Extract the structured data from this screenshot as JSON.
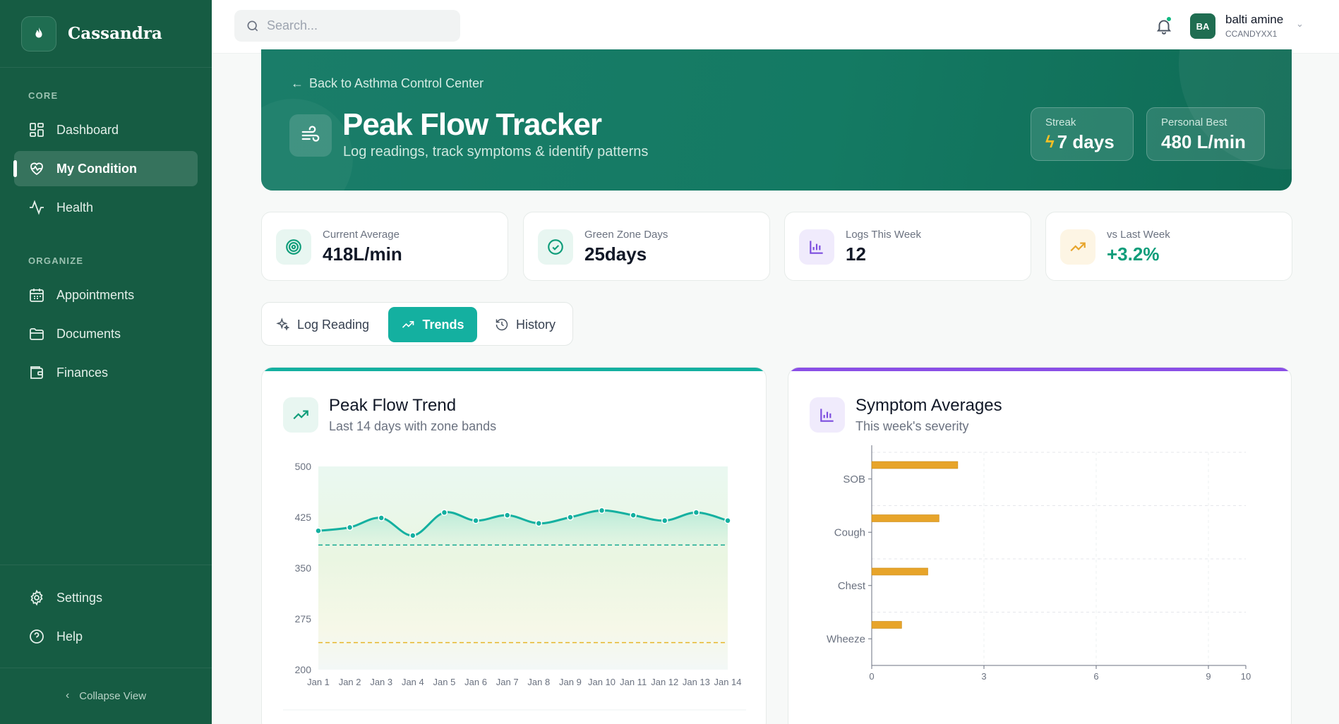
{
  "app": {
    "name": "Cassandra"
  },
  "sidebar": {
    "sections": {
      "core": "CORE",
      "organize": "ORGANIZE"
    },
    "items": [
      {
        "label": "Dashboard",
        "icon": "dashboard-icon"
      },
      {
        "label": "My Condition",
        "icon": "heart-pulse-icon"
      },
      {
        "label": "Health",
        "icon": "activity-icon"
      },
      {
        "label": "Appointments",
        "icon": "calendar-icon"
      },
      {
        "label": "Documents",
        "icon": "folder-icon"
      },
      {
        "label": "Finances",
        "icon": "wallet-icon"
      },
      {
        "label": "Settings",
        "icon": "gear-icon"
      },
      {
        "label": "Help",
        "icon": "help-icon"
      }
    ],
    "collapse_label": "Collapse View"
  },
  "topbar": {
    "search_placeholder": "Search...",
    "user": {
      "initials": "BA",
      "name": "balti amine",
      "id": "CCANDYXX1"
    }
  },
  "hero": {
    "back_label": "Back to Asthma Control Center",
    "title": "Peak Flow Tracker",
    "subtitle": "Log readings, track symptoms & identify patterns",
    "streak": {
      "label": "Streak",
      "value": "7 days"
    },
    "personal_best": {
      "label": "Personal Best",
      "value": "480 L/min"
    }
  },
  "kpis": [
    {
      "label": "Current Average",
      "value": "418L/min",
      "icon": "target-icon",
      "color": "#0f9d7a"
    },
    {
      "label": "Green Zone Days",
      "value": "25days",
      "icon": "check-circle-icon",
      "color": "#0f9d7a"
    },
    {
      "label": "Logs This Week",
      "value": "12",
      "icon": "bar-chart-icon",
      "color": "#7c4dde"
    },
    {
      "label": "vs Last Week",
      "value": "+3.2%",
      "icon": "trending-up-icon",
      "color": "#e7a42a"
    }
  ],
  "tabs": [
    {
      "label": "Log Reading"
    },
    {
      "label": "Trends"
    },
    {
      "label": "History"
    }
  ],
  "colors": {
    "accent": "#14b0a0",
    "sidebar": "#165c43",
    "purple": "#8a4fe6",
    "bar": "#e7a42a"
  },
  "trend_card": {
    "title": "Peak Flow Trend",
    "subtitle": "Last 14 days with zone bands"
  },
  "symptom_card": {
    "title": "Symptom Averages",
    "subtitle": "This week's severity"
  },
  "chart_data": [
    {
      "type": "line",
      "title": "Peak Flow Trend",
      "categories": [
        "Jan 1",
        "Jan 2",
        "Jan 3",
        "Jan 4",
        "Jan 5",
        "Jan 6",
        "Jan 7",
        "Jan 8",
        "Jan 9",
        "Jan 10",
        "Jan 11",
        "Jan 12",
        "Jan 13",
        "Jan 14"
      ],
      "values": [
        405,
        410,
        424,
        398,
        432,
        420,
        428,
        416,
        425,
        435,
        428,
        420,
        432,
        420
      ],
      "ylim": [
        200,
        500
      ],
      "yticks": [
        500,
        425,
        350,
        275,
        200
      ],
      "zones": {
        "green_threshold": 384,
        "yellow_threshold": 240
      },
      "grid": false
    },
    {
      "type": "bar",
      "orientation": "horizontal",
      "title": "Symptom Averages",
      "categories": [
        "SOB",
        "Cough",
        "Chest",
        "Wheeze"
      ],
      "values": [
        2.3,
        1.8,
        1.5,
        0.8
      ],
      "xlim": [
        0,
        10
      ],
      "xticks": [
        0,
        3,
        6,
        9,
        10
      ],
      "grid": true
    }
  ]
}
